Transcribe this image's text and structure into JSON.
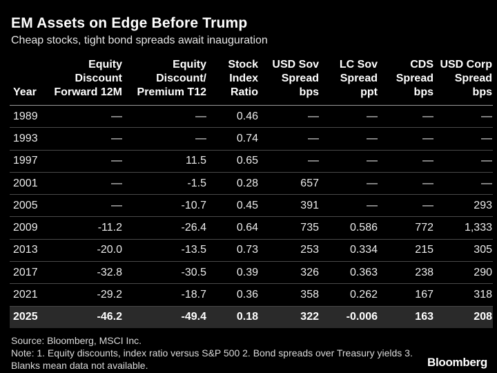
{
  "title": "EM Assets on Edge Before Trump",
  "subtitle": "Cheap stocks, tight bond spreads await inauguration",
  "chart_data": {
    "type": "table",
    "columns": [
      [
        "Year"
      ],
      [
        "Equity",
        "Discount",
        "Forward 12M"
      ],
      [
        "Equity",
        "Discount/",
        "Premium T12"
      ],
      [
        "Stock",
        "Index",
        "Ratio"
      ],
      [
        "USD Sov",
        "Spread",
        "bps"
      ],
      [
        "LC Sov",
        "Spread",
        "ppt"
      ],
      [
        "CDS",
        "Spread",
        "bps"
      ],
      [
        "USD Corp",
        "Spread",
        "bps"
      ]
    ],
    "rows": [
      [
        "1989",
        "—",
        "—",
        "0.46",
        "—",
        "—",
        "—",
        "—"
      ],
      [
        "1993",
        "—",
        "—",
        "0.74",
        "—",
        "—",
        "—",
        "—"
      ],
      [
        "1997",
        "—",
        "11.5",
        "0.65",
        "—",
        "—",
        "—",
        "—"
      ],
      [
        "2001",
        "—",
        "-1.5",
        "0.28",
        "657",
        "—",
        "—",
        "—"
      ],
      [
        "2005",
        "—",
        "-10.7",
        "0.45",
        "391",
        "—",
        "—",
        "293"
      ],
      [
        "2009",
        "-11.2",
        "-26.4",
        "0.64",
        "735",
        "0.586",
        "772",
        "1,333"
      ],
      [
        "2013",
        "-20.0",
        "-13.5",
        "0.73",
        "253",
        "0.334",
        "215",
        "305"
      ],
      [
        "2017",
        "-32.8",
        "-30.5",
        "0.39",
        "326",
        "0.363",
        "238",
        "290"
      ],
      [
        "2021",
        "-29.2",
        "-18.7",
        "0.36",
        "358",
        "0.262",
        "167",
        "318"
      ],
      [
        "2025",
        "-46.2",
        "-49.4",
        "0.18",
        "322",
        "-0.006",
        "163",
        "208"
      ]
    ],
    "highlight_row": 9
  },
  "footer": {
    "source": "Source: Bloomberg, MSCI Inc.",
    "note": "Note: 1. Equity discounts, index ratio versus S&P 500 2. Bond spreads over Treasury yields 3. Blanks mean data not available."
  },
  "brand": "Bloomberg"
}
